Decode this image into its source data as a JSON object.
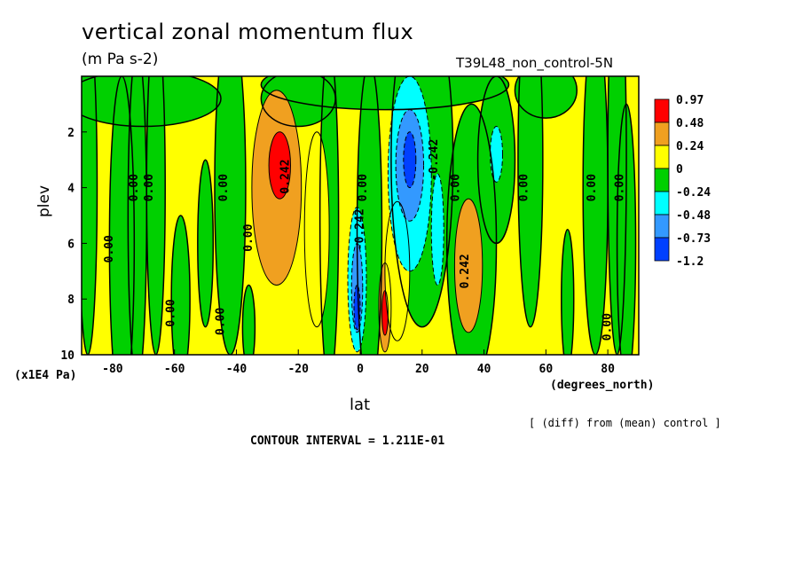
{
  "title": "vertical zonal momentum flux",
  "units": "(m Pa s-2)",
  "case_label": "T39L48_non_control-5N",
  "chart_data": {
    "type": "contour",
    "xlabel": "lat",
    "x_units": "(degrees_north)",
    "ylabel": "plev",
    "y_units": "(x1E4 Pa)",
    "xlim": [
      -90,
      90
    ],
    "ylim": [
      10,
      0
    ],
    "x_ticks": [
      "-80",
      "-60",
      "-40",
      "-20",
      "0",
      "20",
      "40",
      "60",
      "80"
    ],
    "x_tick_values": [
      -80,
      -60,
      -40,
      -20,
      0,
      20,
      40,
      60,
      80
    ],
    "y_ticks": [
      "2",
      "4",
      "6",
      "8",
      "10"
    ],
    "y_tick_values": [
      2,
      4,
      6,
      8,
      10
    ],
    "colorbar": {
      "labels": [
        "0.97",
        "0.48",
        "0.24",
        "0",
        "-0.24",
        "-0.48",
        "-0.73",
        "-1.2"
      ],
      "colors": [
        "#ff0000",
        "#f0a020",
        "#ffff00",
        "#00d000",
        "#00ffff",
        "#3399ff",
        "#0040ff"
      ]
    },
    "contour_labels": [
      {
        "text": "0.242",
        "lat": -23,
        "plev": 3.6
      },
      {
        "text": "0.242",
        "lat": 35,
        "plev": 7.0
      },
      {
        "text": "-0.242",
        "lat": 25,
        "plev": 3.0
      },
      {
        "text": "-0.242",
        "lat": 1,
        "plev": 5.5
      },
      {
        "text": "0.00",
        "lat": -72,
        "plev": 4.0
      },
      {
        "text": "0.00",
        "lat": -67,
        "plev": 4.0
      },
      {
        "text": "0.00",
        "lat": -43,
        "plev": 4.0
      },
      {
        "text": "0.00",
        "lat": -80,
        "plev": 6.2
      },
      {
        "text": "0.00",
        "lat": -35,
        "plev": 5.8
      },
      {
        "text": "0.00",
        "lat": -60,
        "plev": 8.5
      },
      {
        "text": "0.00",
        "lat": -44,
        "plev": 8.8
      },
      {
        "text": "0.00",
        "lat": 2,
        "plev": 4.0
      },
      {
        "text": "0.00",
        "lat": 32,
        "plev": 4.0
      },
      {
        "text": "0.00",
        "lat": 54,
        "plev": 4.0
      },
      {
        "text": "0.00",
        "lat": 76,
        "plev": 4.0
      },
      {
        "text": "0.00",
        "lat": 85,
        "plev": 4.0
      },
      {
        "text": "0.00",
        "lat": 81,
        "plev": 9.0
      }
    ],
    "note": "[ (diff) from (mean) control ]",
    "contour_interval": "CONTOUR INTERVAL = 1.211E-01"
  }
}
